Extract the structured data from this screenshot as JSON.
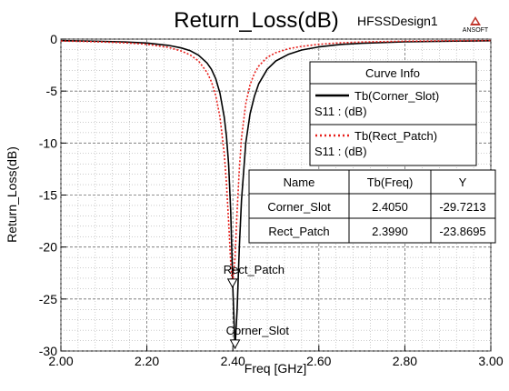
{
  "chart_data": {
    "type": "line",
    "title": "Return_Loss(dB)",
    "design_label": "HFSSDesign1",
    "logo_text": "ANSOFT",
    "xlabel": "Freq [GHz]",
    "ylabel": "Return_Loss(dB)",
    "xlim": [
      2.0,
      3.0
    ],
    "ylim": [
      -30,
      0
    ],
    "xticks": [
      2.0,
      2.2,
      2.4,
      2.6,
      2.8,
      3.0
    ],
    "xtick_labels": [
      "2.00",
      "2.20",
      "2.40",
      "2.60",
      "2.80",
      "3.00"
    ],
    "yticks": [
      0,
      -5,
      -10,
      -15,
      -20,
      -25,
      -30
    ],
    "ytick_labels": [
      "0",
      "-5",
      "-10",
      "-15",
      "-20",
      "-25",
      "-30"
    ],
    "grid": true,
    "legend": {
      "title": "Curve Info",
      "placement": "top-right",
      "entries": [
        {
          "line1": "Tb(Corner_Slot)",
          "line2": "S11 : (dB)"
        },
        {
          "line1": "Tb(Rect_Patch)",
          "line2": "S11 : (dB)"
        }
      ]
    },
    "series": [
      {
        "name": "Tb(Corner_Slot)",
        "color": "#000000",
        "dash": "solid",
        "x": [
          2.0,
          2.05,
          2.1,
          2.15,
          2.2,
          2.25,
          2.28,
          2.3,
          2.32,
          2.34,
          2.35,
          2.36,
          2.37,
          2.38,
          2.385,
          2.39,
          2.395,
          2.4,
          2.405,
          2.41,
          2.415,
          2.42,
          2.43,
          2.44,
          2.45,
          2.46,
          2.48,
          2.5,
          2.53,
          2.56,
          2.6,
          2.65,
          2.7,
          2.8,
          2.9,
          3.0
        ],
        "y": [
          -0.15,
          -0.18,
          -0.22,
          -0.28,
          -0.38,
          -0.6,
          -0.85,
          -1.1,
          -1.55,
          -2.3,
          -2.9,
          -3.8,
          -5.2,
          -7.5,
          -9.3,
          -12.0,
          -16.5,
          -24.0,
          -29.72,
          -26.0,
          -20.0,
          -15.5,
          -10.0,
          -7.2,
          -5.5,
          -4.3,
          -2.9,
          -2.1,
          -1.45,
          -1.05,
          -0.75,
          -0.52,
          -0.4,
          -0.26,
          -0.2,
          -0.16
        ]
      },
      {
        "name": "Tb(Rect_Patch)",
        "color": "#e8201c",
        "dash": "dotted",
        "x": [
          2.0,
          2.05,
          2.1,
          2.15,
          2.2,
          2.25,
          2.28,
          2.3,
          2.32,
          2.34,
          2.35,
          2.36,
          2.37,
          2.38,
          2.385,
          2.39,
          2.395,
          2.399,
          2.405,
          2.41,
          2.415,
          2.42,
          2.43,
          2.44,
          2.45,
          2.46,
          2.48,
          2.5,
          2.53,
          2.56,
          2.6,
          2.65,
          2.7,
          2.8,
          2.9,
          3.0
        ],
        "y": [
          -0.18,
          -0.22,
          -0.28,
          -0.36,
          -0.5,
          -0.8,
          -1.15,
          -1.5,
          -2.1,
          -3.2,
          -4.1,
          -5.4,
          -7.5,
          -11.0,
          -13.8,
          -17.5,
          -21.5,
          -23.87,
          -21.0,
          -16.5,
          -12.5,
          -9.5,
          -6.2,
          -4.4,
          -3.3,
          -2.6,
          -1.75,
          -1.3,
          -0.92,
          -0.7,
          -0.5,
          -0.36,
          -0.28,
          -0.2,
          -0.16,
          -0.14
        ]
      }
    ],
    "markers": [
      {
        "label": "Rect_Patch",
        "x": 2.399,
        "y": -23.8695
      },
      {
        "label": "Corner_Slot",
        "x": 2.405,
        "y": -29.7213
      }
    ],
    "marker_table": {
      "headers": [
        "Name",
        "Tb(Freq)",
        "Y"
      ],
      "rows": [
        [
          "Corner_Slot",
          "2.4050",
          "-29.7213"
        ],
        [
          "Rect_Patch",
          "2.3990",
          "-23.8695"
        ]
      ]
    }
  }
}
